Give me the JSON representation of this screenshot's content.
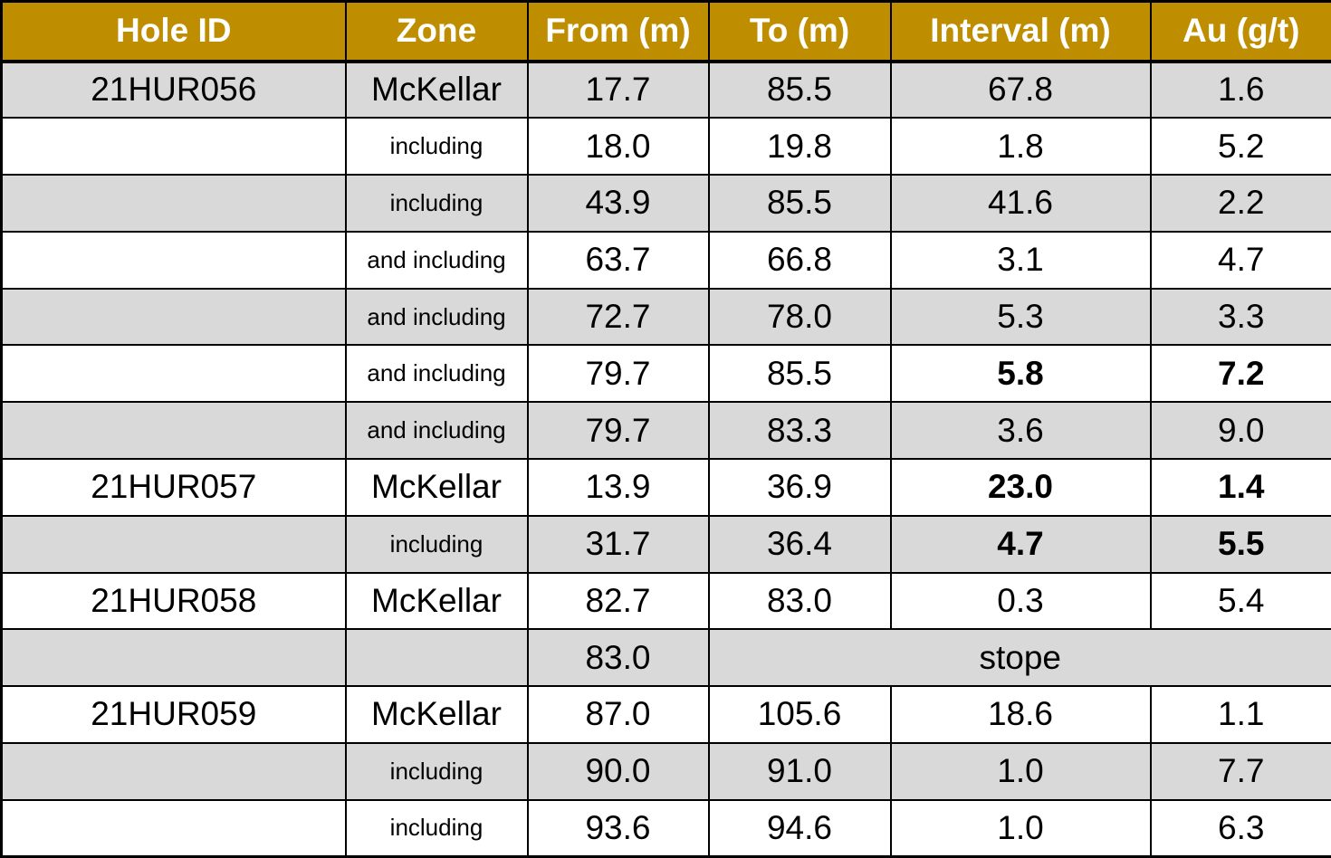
{
  "colors": {
    "header_background": "#bf8e00",
    "header_text": "#ffffff",
    "row_shaded": "#d9d9d9",
    "row_plain": "#ffffff",
    "border": "#000000"
  },
  "table": {
    "headers": [
      "Hole ID",
      "Zone",
      "From (m)",
      "To (m)",
      "Interval (m)",
      "Au (g/t)"
    ],
    "rows": [
      {
        "hole_id": "21HUR056",
        "zone": "McKellar",
        "from": "17.7",
        "to": "85.5",
        "interval": "67.8",
        "au": "1.6",
        "shaded": true,
        "bold_values": false
      },
      {
        "hole_id": "",
        "zone": "including",
        "from": "18.0",
        "to": "19.8",
        "interval": "1.8",
        "au": "5.2",
        "shaded": false,
        "bold_values": false
      },
      {
        "hole_id": "",
        "zone": "including",
        "from": "43.9",
        "to": "85.5",
        "interval": "41.6",
        "au": "2.2",
        "shaded": true,
        "bold_values": false
      },
      {
        "hole_id": "",
        "zone": "and including",
        "from": "63.7",
        "to": "66.8",
        "interval": "3.1",
        "au": "4.7",
        "shaded": false,
        "bold_values": false
      },
      {
        "hole_id": "",
        "zone": "and including",
        "from": "72.7",
        "to": "78.0",
        "interval": "5.3",
        "au": "3.3",
        "shaded": true,
        "bold_values": false
      },
      {
        "hole_id": "",
        "zone": "and including",
        "from": "79.7",
        "to": "85.5",
        "interval": "5.8",
        "au": "7.2",
        "shaded": false,
        "bold_values": true
      },
      {
        "hole_id": "",
        "zone": "and including",
        "from": "79.7",
        "to": "83.3",
        "interval": "3.6",
        "au": "9.0",
        "shaded": true,
        "bold_values": false
      },
      {
        "hole_id": "21HUR057",
        "zone": "McKellar",
        "from": "13.9",
        "to": "36.9",
        "interval": "23.0",
        "au": "1.4",
        "shaded": false,
        "bold_values": true
      },
      {
        "hole_id": "",
        "zone": "including",
        "from": "31.7",
        "to": "36.4",
        "interval": "4.7",
        "au": "5.5",
        "shaded": true,
        "bold_values": true
      },
      {
        "hole_id": "21HUR058",
        "zone": "McKellar",
        "from": "82.7",
        "to": "83.0",
        "interval": "0.3",
        "au": "5.4",
        "shaded": false,
        "bold_values": false
      },
      {
        "hole_id": "",
        "zone": "",
        "from": "83.0",
        "merged_note": "stope",
        "shaded": true,
        "bold_values": false
      },
      {
        "hole_id": "21HUR059",
        "zone": "McKellar",
        "from": "87.0",
        "to": "105.6",
        "interval": "18.6",
        "au": "1.1",
        "shaded": false,
        "bold_values": false
      },
      {
        "hole_id": "",
        "zone": "including",
        "from": "90.0",
        "to": "91.0",
        "interval": "1.0",
        "au": "7.7",
        "shaded": true,
        "bold_values": false
      },
      {
        "hole_id": "",
        "zone": "including",
        "from": "93.6",
        "to": "94.6",
        "interval": "1.0",
        "au": "6.3",
        "shaded": false,
        "bold_values": false
      }
    ]
  }
}
